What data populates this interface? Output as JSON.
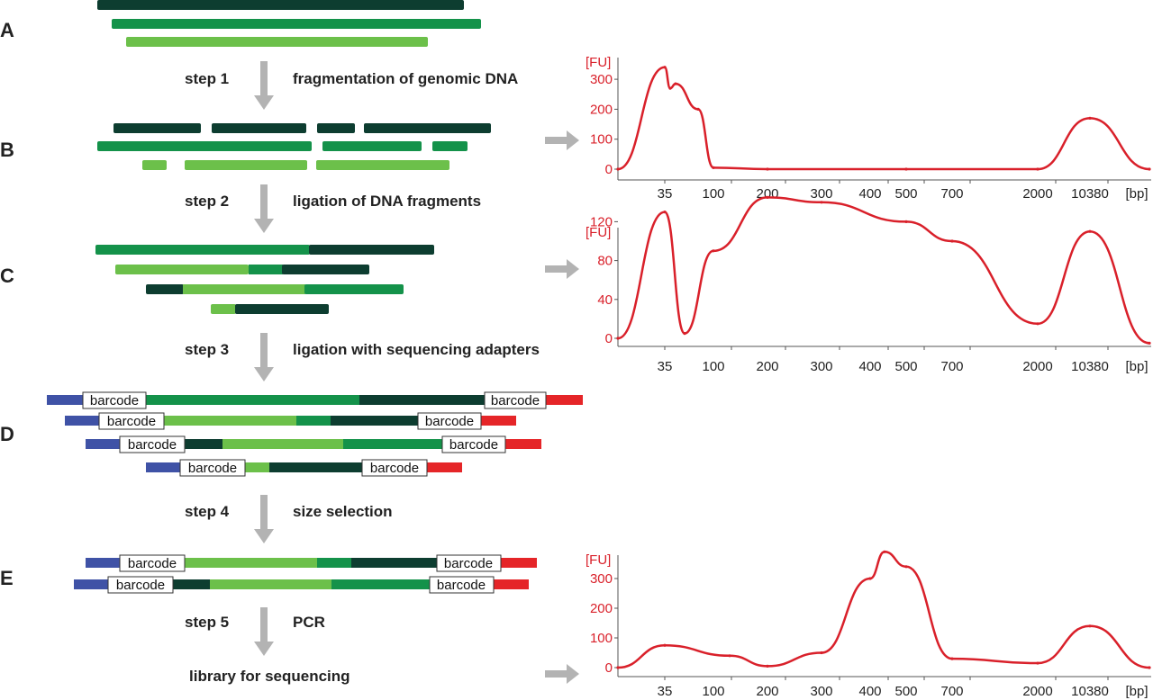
{
  "colors": {
    "dark": "#0d3d30",
    "mid": "#14924a",
    "light": "#6cc04a",
    "blue": "#3f52a6",
    "red": "#e52528",
    "arrow": "#b3b3b3",
    "trace": "#d9202a",
    "text": "#222222"
  },
  "panels": [
    "A",
    "B",
    "C",
    "D",
    "E"
  ],
  "steps": [
    {
      "step": "step 1",
      "desc": "fragmentation of genomic DNA"
    },
    {
      "step": "step 2",
      "desc": "ligation of DNA fragments"
    },
    {
      "step": "step 3",
      "desc": "ligation with sequencing adapters"
    },
    {
      "step": "step 4",
      "desc": "size selection"
    },
    {
      "step": "step 5",
      "desc": "PCR"
    }
  ],
  "final_label": "library for sequencing",
  "barcode_label": "barcode",
  "charts_common": {
    "fu_label": "[FU]",
    "bp_label": "[bp]",
    "x_ticks": [
      "35",
      "100",
      "200",
      "300",
      "400",
      "500",
      "700",
      "2000",
      "10380"
    ]
  },
  "chart_data": [
    {
      "type": "line",
      "panel": "B",
      "ylabel": "[FU]",
      "xlabel": "[bp]",
      "y_ticks": [
        0,
        100,
        200,
        300
      ],
      "ylim": [
        0,
        340
      ],
      "x_categories": [
        "35",
        "100",
        "200",
        "300",
        "400",
        "500",
        "700",
        "2000",
        "10380"
      ],
      "series": [
        {
          "points": [
            [
              "<35",
              0
            ],
            [
              "35",
              340
            ],
            [
              "~40",
              270
            ],
            [
              "~45",
              285
            ],
            [
              "~60",
              200
            ],
            [
              "100",
              5
            ],
            [
              "200",
              0
            ],
            [
              "500",
              0
            ],
            [
              "2000",
              0
            ],
            [
              "10380",
              170
            ],
            [
              ">10380",
              0
            ]
          ]
        }
      ]
    },
    {
      "type": "line",
      "panel": "C",
      "ylabel": "[FU]",
      "xlabel": "[bp]",
      "y_ticks": [
        0,
        40,
        80,
        120
      ],
      "ylim": [
        0,
        135
      ],
      "x_categories": [
        "35",
        "100",
        "200",
        "300",
        "400",
        "500",
        "700",
        "2000",
        "10380"
      ],
      "series": [
        {
          "points": [
            [
              "<35",
              0
            ],
            [
              "35",
              130
            ],
            [
              "~50",
              5
            ],
            [
              "100",
              90
            ],
            [
              "200",
              145
            ],
            [
              "300",
              140
            ],
            [
              "500",
              120
            ],
            [
              "700",
              100
            ],
            [
              "2000",
              15
            ],
            [
              "10380",
              110
            ],
            [
              ">10380",
              -5
            ]
          ]
        }
      ]
    },
    {
      "type": "line",
      "panel": "E",
      "ylabel": "[FU]",
      "xlabel": "[bp]",
      "y_ticks": [
        0,
        100,
        200,
        300
      ],
      "ylim": [
        0,
        360
      ],
      "x_categories": [
        "35",
        "100",
        "200",
        "300",
        "400",
        "500",
        "700",
        "2000",
        "10380"
      ],
      "series": [
        {
          "points": [
            [
              "<35",
              0
            ],
            [
              "35",
              75
            ],
            [
              "~130",
              40
            ],
            [
              "200",
              5
            ],
            [
              "300",
              50
            ],
            [
              "400",
              300
            ],
            [
              "450",
              390
            ],
            [
              "500",
              340
            ],
            [
              "700",
              30
            ],
            [
              "2000",
              15
            ],
            [
              "10380",
              140
            ],
            [
              ">10380",
              0
            ]
          ]
        }
      ]
    }
  ]
}
